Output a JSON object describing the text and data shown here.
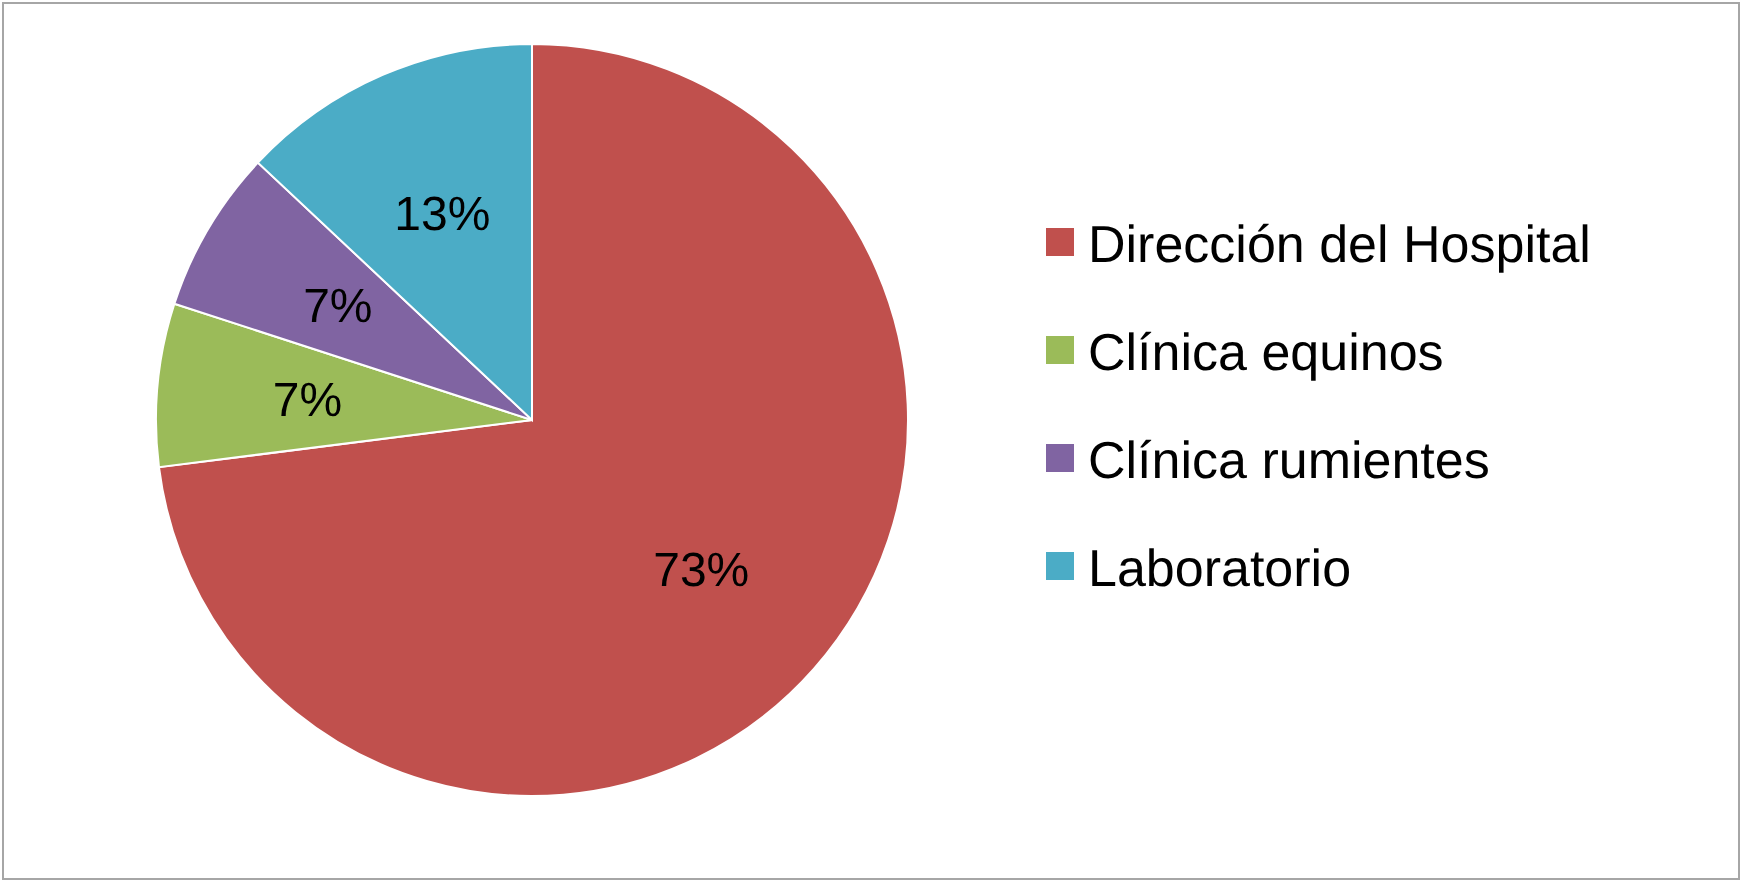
{
  "chart_data": {
    "type": "pie",
    "categories": [
      "Dirección del Hospital",
      "Clínica equinos",
      "Clínica rumientes",
      "Laboratorio"
    ],
    "values": [
      73,
      7,
      7,
      13
    ],
    "colors": [
      "#c0504d",
      "#9bbb59",
      "#8064a2",
      "#4bacc6"
    ],
    "value_labels": [
      "73%",
      "7%",
      "7%",
      "13%"
    ],
    "legend": "right"
  }
}
